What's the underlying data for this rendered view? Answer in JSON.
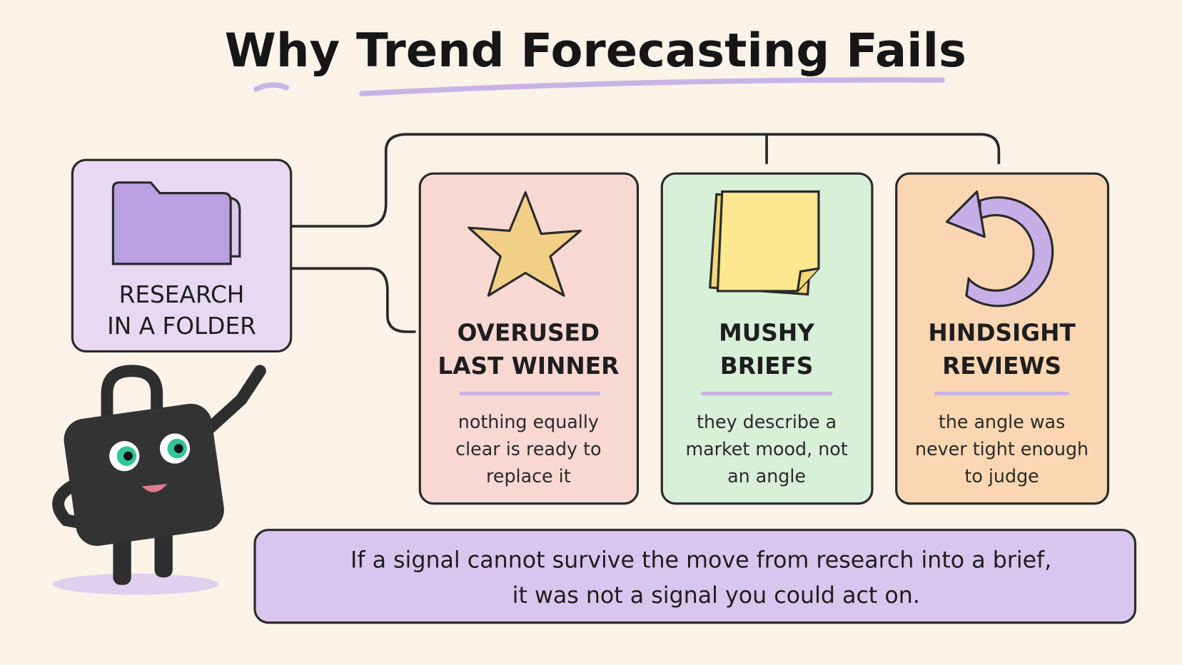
{
  "header": {
    "title": "Why Trend Forecasting Fails"
  },
  "source": {
    "lines": [
      "RESEARCH",
      "IN A FOLDER"
    ]
  },
  "cards": [
    {
      "title": [
        "OVERUSED",
        "LAST WINNER"
      ],
      "text": [
        "nothing equally",
        "clear is ready to",
        "replace it"
      ]
    },
    {
      "title": [
        "MUSHY",
        "BRIEFS"
      ],
      "text": [
        "they describe a",
        "market mood, not",
        "an angle"
      ]
    },
    {
      "title": [
        "HINDSIGHT",
        "REVIEWS"
      ],
      "text": [
        "the angle was",
        "never tight enough",
        "to judge"
      ]
    }
  ],
  "footer": {
    "lines": [
      "If a signal cannot survive the move from research into a brief,",
      "it was not a signal you could act on."
    ]
  }
}
